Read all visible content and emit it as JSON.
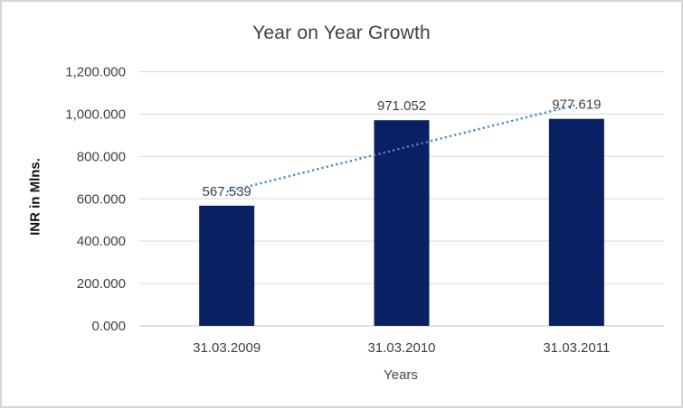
{
  "frame": {
    "background": "#ffffff",
    "border_color": "#d6d6d6"
  },
  "chart_data": {
    "type": "bar",
    "title": "Year on Year Growth",
    "xlabel": "Years",
    "ylabel": "INR in Mlns.",
    "categories": [
      "31.03.2009",
      "31.03.2010",
      "31.03.2011"
    ],
    "values": [
      567.539,
      971.052,
      977.619
    ],
    "value_labels": [
      "567.539",
      "971.052",
      "977.619"
    ],
    "ylim": [
      0,
      1200
    ],
    "yticks": [
      0,
      200,
      400,
      600,
      800,
      1000,
      1200
    ],
    "ytick_labels": [
      "0.000",
      "200.000",
      "400.000",
      "600.000",
      "800.000",
      "1,000.000",
      "1,200.000"
    ],
    "grid": true,
    "legend": "none",
    "trendline": {
      "type": "linear",
      "style": "dotted",
      "values": [
        633.7,
        838.74,
        1043.78
      ]
    },
    "colors": {
      "bar": "#092163",
      "trendline": "#4a86c8",
      "gridline": "#d9d9d9",
      "axis_line": "#c3c3c3",
      "text": "#404040",
      "title": "#404040"
    }
  }
}
